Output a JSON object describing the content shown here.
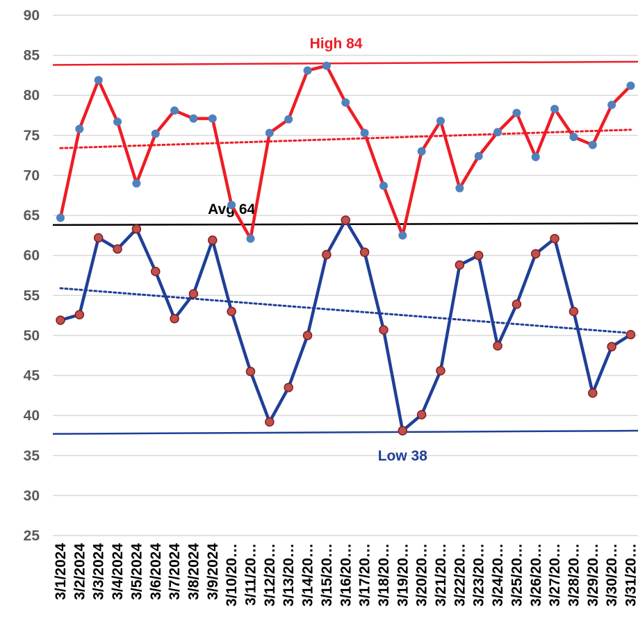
{
  "chart_data": {
    "type": "line",
    "ylim": [
      25,
      90
    ],
    "yticks": [
      25,
      30,
      35,
      40,
      45,
      50,
      55,
      60,
      65,
      70,
      75,
      80,
      85,
      90
    ],
    "grid": "horizontal",
    "categories": [
      "3/1/2024",
      "3/2/2024",
      "3/3/2024",
      "3/4/2024",
      "3/5/2024",
      "3/6/2024",
      "3/7/2024",
      "3/8/2024",
      "3/9/2024",
      "3/10/20…",
      "3/11/20…",
      "3/12/20…",
      "3/13/20…",
      "3/14/20…",
      "3/15/20…",
      "3/16/20…",
      "3/17/20…",
      "3/18/20…",
      "3/19/20…",
      "3/20/20…",
      "3/21/20…",
      "3/22/20…",
      "3/23/20…",
      "3/24/20…",
      "3/25/20…",
      "3/26/20…",
      "3/27/20…",
      "3/28/20…",
      "3/29/20…",
      "3/30/20…",
      "3/31/20…"
    ],
    "series": [
      {
        "color": "#ee1c25",
        "marker_color": "#4f81bd",
        "values": [
          64.7,
          75.8,
          81.9,
          76.7,
          69.0,
          75.2,
          78.1,
          77.1,
          77.1,
          66.3,
          62.1,
          75.3,
          77.0,
          83.1,
          83.7,
          79.1,
          75.3,
          68.7,
          62.5,
          73.0,
          76.8,
          68.4,
          72.4,
          75.4,
          77.8,
          72.3,
          78.3,
          74.8,
          73.8,
          78.8,
          81.2
        ]
      },
      {
        "color": "#1f3f97",
        "marker_color": "#c0504d",
        "values": [
          51.9,
          52.6,
          62.2,
          60.8,
          63.3,
          58.0,
          52.1,
          55.2,
          61.9,
          53.0,
          45.5,
          39.2,
          43.5,
          50.0,
          60.1,
          64.4,
          60.4,
          50.7,
          38.1,
          40.1,
          45.6,
          58.8,
          60.0,
          48.7,
          53.9,
          60.2,
          62.1,
          53.0,
          42.8,
          48.6,
          50.1
        ]
      }
    ],
    "trendlines": [
      {
        "color": "#ee1c25",
        "start": 73.4,
        "end": 75.7
      },
      {
        "color": "#1f3f97",
        "start": 55.9,
        "end": 50.3
      }
    ],
    "reference_lines": [
      {
        "label": "High 84",
        "y_start": 83.8,
        "y_end": 84.2,
        "color": "#ee1c25",
        "label_at_index": 14.5,
        "label_y": 86.5
      },
      {
        "label": "Avg 64",
        "y_start": 63.8,
        "y_end": 64.0,
        "color": "#000000",
        "label_at_index": 9.0,
        "label_y": 65.8
      },
      {
        "label": "Low 38",
        "y_start": 37.7,
        "y_end": 38.1,
        "color": "#1f3f97",
        "label_at_index": 18.0,
        "label_y": 35.0
      }
    ]
  }
}
